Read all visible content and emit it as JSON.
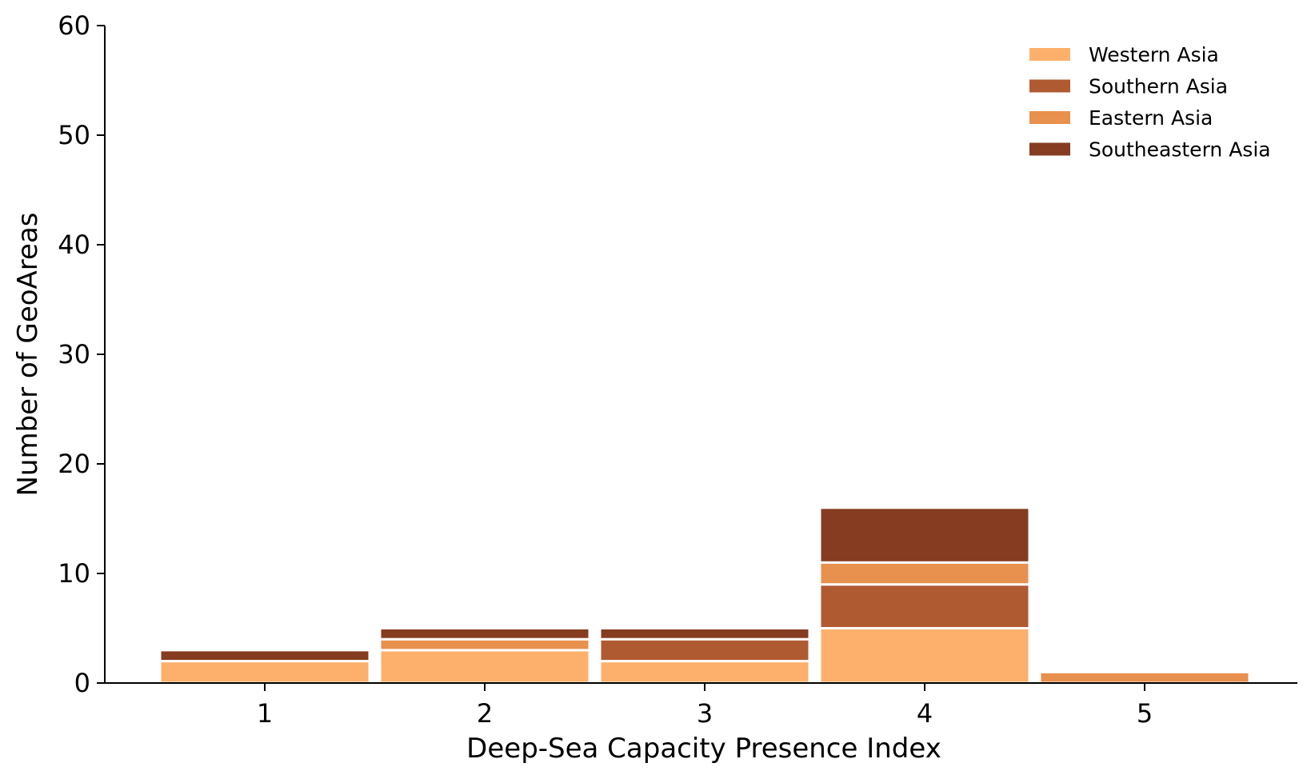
{
  "chart_data": {
    "type": "bar",
    "stacked": true,
    "categories": [
      "1",
      "2",
      "3",
      "4",
      "5"
    ],
    "series": [
      {
        "name": "Western Asia",
        "color": "#fdb06b",
        "values": [
          2,
          3,
          2,
          5,
          0
        ]
      },
      {
        "name": "Southern Asia",
        "color": "#b05a32",
        "values": [
          0,
          0,
          2,
          4,
          0
        ]
      },
      {
        "name": "Eastern Asia",
        "color": "#e8904d",
        "values": [
          0,
          1,
          0,
          2,
          1
        ]
      },
      {
        "name": "Southeastern Asia",
        "color": "#853c20",
        "values": [
          1,
          1,
          1,
          5,
          0
        ]
      }
    ],
    "xlabel": "Deep-Sea Capacity Presence Index",
    "ylabel": "Number of GeoAreas",
    "ylim": [
      0,
      60
    ],
    "yticks": [
      0,
      10,
      20,
      30,
      40,
      50,
      60
    ],
    "grid": false,
    "legend_position": "top-right"
  }
}
